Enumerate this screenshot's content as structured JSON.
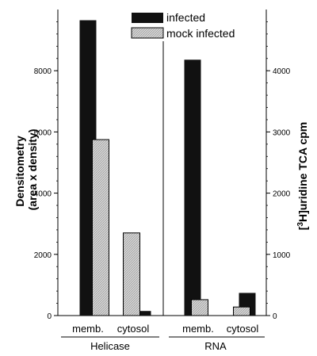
{
  "chart_data": {
    "type": "bar",
    "panels": [
      {
        "group_label": "Helicase",
        "axis_side": "left",
        "axis_label_lines": [
          "Densitometry",
          "(area x density)"
        ],
        "ylim": [
          0,
          10000
        ],
        "yticks": [
          0,
          2000,
          4000,
          6000,
          8000
        ],
        "categories": [
          "memb.",
          "cytosol"
        ],
        "series": [
          {
            "name": "infected",
            "values": [
              9650,
              150
            ]
          },
          {
            "name": "mock infected",
            "values": [
              5750,
              2700
            ]
          }
        ]
      },
      {
        "group_label": "RNA",
        "axis_side": "right",
        "axis_label_prefix": "[",
        "axis_label_sup": "3",
        "axis_label_suffix": "H]uridine TCA cpm",
        "ylim": [
          0,
          5000
        ],
        "yticks": [
          0,
          1000,
          2000,
          3000,
          4000
        ],
        "categories": [
          "memb.",
          "cytosol"
        ],
        "series": [
          {
            "name": "infected",
            "values": [
              4180,
              370
            ]
          },
          {
            "name": "mock infected",
            "values": [
              260,
              140
            ]
          }
        ]
      }
    ],
    "legend": {
      "placement": "top-center",
      "entries": [
        {
          "name": "infected",
          "color": "#111111"
        },
        {
          "name": "mock infected",
          "color": "#d4d4d4",
          "pattern": "hatched"
        }
      ]
    },
    "colors": {
      "infected": "#111111",
      "mock_infected": "#d4d4d4",
      "axis": "#000000"
    }
  }
}
